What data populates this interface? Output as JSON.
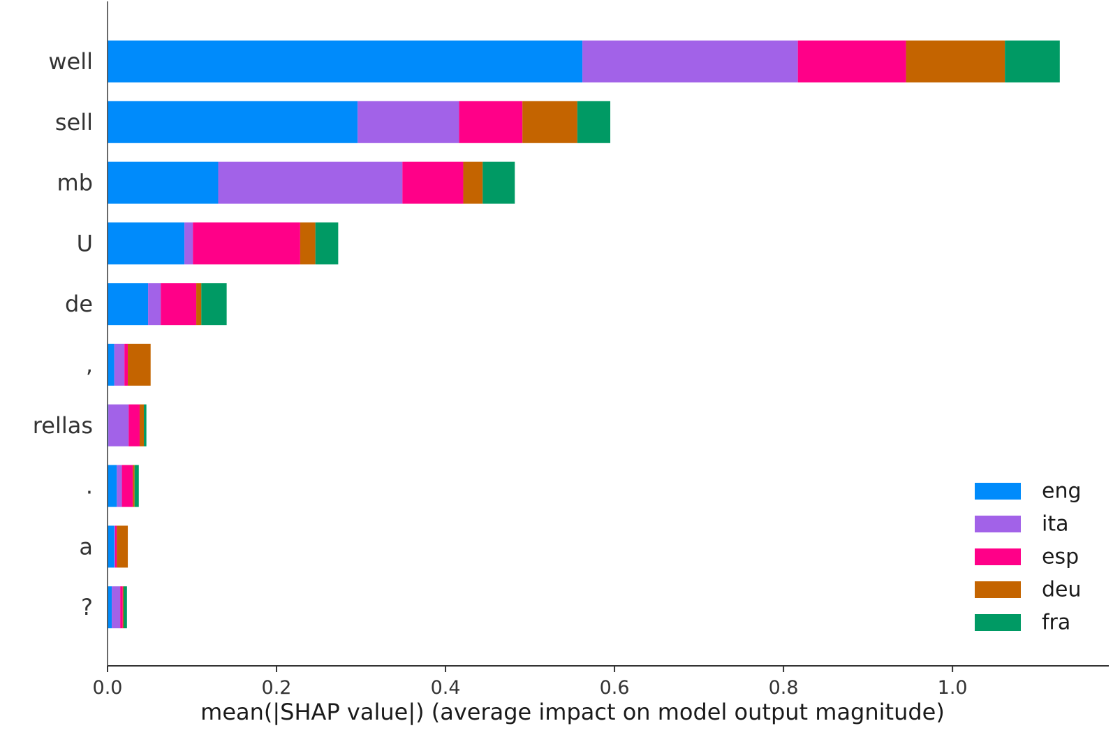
{
  "chart_data": {
    "type": "bar",
    "orientation": "horizontal",
    "stacked": true,
    "categories": [
      "well",
      "sell",
      "mb",
      "U",
      "de",
      ",",
      "rellas",
      ".",
      "a",
      "?"
    ],
    "series": [
      {
        "name": "eng",
        "color": "#008bfb",
        "values": [
          0.562,
          0.296,
          0.131,
          0.091,
          0.048,
          0.008,
          0.001,
          0.011,
          0.008,
          0.005
        ]
      },
      {
        "name": "ita",
        "color": "#a262e8",
        "values": [
          0.255,
          0.12,
          0.218,
          0.01,
          0.015,
          0.012,
          0.024,
          0.006,
          0.001,
          0.01
        ]
      },
      {
        "name": "esp",
        "color": "#ff0088",
        "values": [
          0.128,
          0.075,
          0.072,
          0.127,
          0.042,
          0.004,
          0.013,
          0.013,
          0.002,
          0.003
        ]
      },
      {
        "name": "deu",
        "color": "#c46400",
        "values": [
          0.117,
          0.065,
          0.023,
          0.018,
          0.006,
          0.027,
          0.005,
          0.002,
          0.013,
          0.001
        ]
      },
      {
        "name": "fra",
        "color": "#009a64",
        "values": [
          0.065,
          0.039,
          0.038,
          0.027,
          0.03,
          0.0,
          0.003,
          0.005,
          0.0,
          0.004
        ]
      }
    ],
    "xlabel": "mean(|SHAP value|) (average impact on model output magnitude)",
    "ylabel": "",
    "xlim": [
      0,
      1.185
    ],
    "xticks": [
      0.0,
      0.2,
      0.4,
      0.6,
      0.8,
      1.0
    ],
    "xtick_labels": [
      "0.0",
      "0.2",
      "0.4",
      "0.6",
      "0.8",
      "1.0"
    ],
    "grid": false,
    "legend_position": "lower-right"
  }
}
